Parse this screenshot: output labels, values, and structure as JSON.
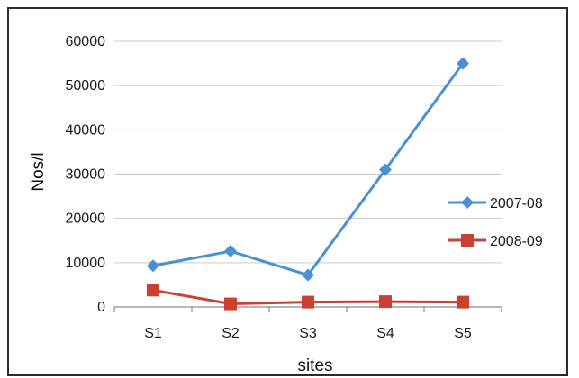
{
  "chart_data": {
    "type": "line",
    "title": "",
    "xlabel": "sites",
    "ylabel": "Nos/l",
    "categories": [
      "S1",
      "S2",
      "S3",
      "S4",
      "S5"
    ],
    "ylim": [
      0,
      60000
    ],
    "yticks": [
      0,
      10000,
      20000,
      30000,
      40000,
      50000,
      60000
    ],
    "grid": "horizontal",
    "legend_position": "right",
    "series": [
      {
        "name": "2007-08",
        "values": [
          9300,
          12600,
          7200,
          31000,
          55000
        ],
        "color": "#4a8fd4",
        "marker": "diamond"
      },
      {
        "name": "2008-09",
        "values": [
          3800,
          700,
          1100,
          1200,
          1100
        ],
        "color": "#cc3f33",
        "marker": "square"
      }
    ]
  }
}
